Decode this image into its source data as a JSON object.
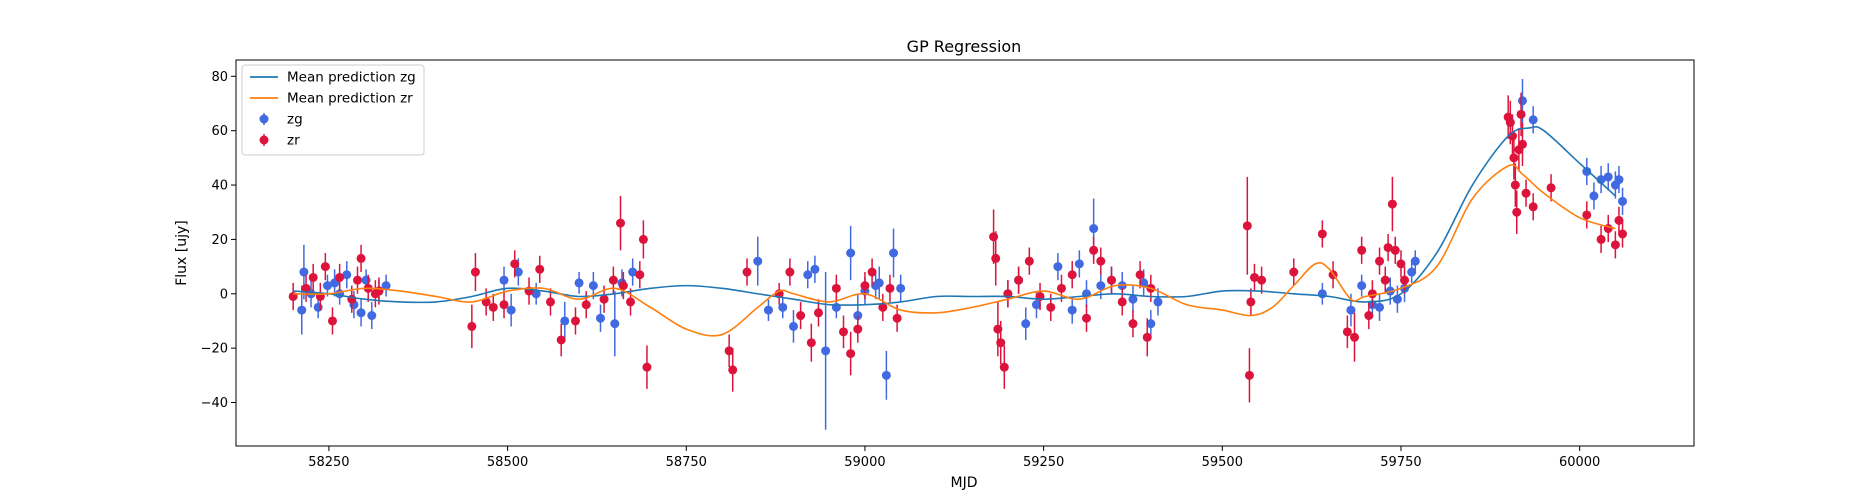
{
  "chart_data": {
    "type": "scatter",
    "title": "GP Regression",
    "xlabel": "MJD",
    "ylabel": "Flux [ujy]",
    "xlim": [
      58120,
      60160
    ],
    "ylim": [
      -56,
      86
    ],
    "xticks": [
      58250,
      58500,
      58750,
      59000,
      59250,
      59500,
      59750,
      60000
    ],
    "yticks": [
      -40,
      -20,
      0,
      20,
      40,
      60,
      80
    ],
    "grid": false,
    "legend_position": "upper-left",
    "colors": {
      "zg_line": "#1f77b4",
      "zr_line": "#ff7f0e",
      "zg_points": "#4169e1",
      "zr_points": "#dc143c"
    },
    "series": [
      {
        "name": "Mean prediction zg",
        "kind": "line",
        "color": "#1f77b4",
        "x": [
          58200,
          58250,
          58300,
          58350,
          58400,
          58450,
          58500,
          58550,
          58600,
          58650,
          58700,
          58750,
          58800,
          58850,
          58900,
          58950,
          59000,
          59050,
          59100,
          59150,
          59200,
          59250,
          59300,
          59350,
          59400,
          59450,
          59500,
          59550,
          59600,
          59650,
          59700,
          59750,
          59800,
          59850,
          59900,
          59930,
          59950,
          60000,
          60050
        ],
        "y": [
          1,
          0,
          -2,
          -3,
          -3,
          -1,
          2,
          1,
          -1,
          0,
          2,
          3,
          2,
          0,
          -2,
          -4,
          -4,
          -3,
          -1,
          -1,
          -1,
          -2,
          -1,
          0,
          -1,
          -1,
          1,
          1,
          0,
          -1,
          -3,
          0,
          15,
          40,
          58,
          61,
          60,
          48,
          36
        ]
      },
      {
        "name": "Mean prediction zr",
        "kind": "line",
        "color": "#ff7f0e",
        "x": [
          58200,
          58250,
          58300,
          58350,
          58400,
          58450,
          58500,
          58550,
          58600,
          58650,
          58700,
          58750,
          58800,
          58850,
          58880,
          58900,
          58950,
          59000,
          59050,
          59100,
          59150,
          59200,
          59250,
          59300,
          59350,
          59400,
          59450,
          59500,
          59540,
          59570,
          59600,
          59630,
          59650,
          59680,
          59700,
          59750,
          59800,
          59850,
          59900,
          59920,
          59950,
          60000,
          60050
        ],
        "y": [
          0,
          0,
          2,
          1,
          -1,
          -3,
          1,
          2,
          -2,
          2,
          -5,
          -13,
          -15,
          -5,
          1,
          0,
          -3,
          0,
          -6,
          -7,
          -5,
          -2,
          1,
          -2,
          3,
          2,
          -4,
          -6,
          -8,
          -5,
          3,
          11,
          9,
          -2,
          -1,
          2,
          10,
          35,
          47,
          44,
          37,
          28,
          24
        ]
      },
      {
        "name": "zg",
        "kind": "errorbar",
        "color": "#4169e1",
        "points": [
          [
            58212,
            -6,
            9
          ],
          [
            58215,
            8,
            10
          ],
          [
            58225,
            0,
            5
          ],
          [
            58235,
            -5,
            4
          ],
          [
            58248,
            3,
            4
          ],
          [
            58258,
            4,
            5
          ],
          [
            58265,
            0,
            4
          ],
          [
            58275,
            7,
            5
          ],
          [
            58285,
            -4,
            5
          ],
          [
            58295,
            -7,
            5
          ],
          [
            58302,
            5,
            4
          ],
          [
            58310,
            -8,
            5
          ],
          [
            58320,
            1,
            4
          ],
          [
            58330,
            3,
            4
          ],
          [
            58495,
            5,
            5
          ],
          [
            58505,
            -6,
            6
          ],
          [
            58515,
            8,
            5
          ],
          [
            58540,
            0,
            4
          ],
          [
            58580,
            -10,
            7
          ],
          [
            58600,
            4,
            4
          ],
          [
            58620,
            3,
            5
          ],
          [
            58630,
            -9,
            5
          ],
          [
            58650,
            -11,
            12
          ],
          [
            58660,
            4,
            5
          ],
          [
            58675,
            8,
            5
          ],
          [
            58850,
            12,
            9
          ],
          [
            58865,
            -6,
            4
          ],
          [
            58885,
            -5,
            4
          ],
          [
            58900,
            -12,
            6
          ],
          [
            58920,
            7,
            5
          ],
          [
            58930,
            9,
            5
          ],
          [
            58945,
            -21,
            29
          ],
          [
            58960,
            -5,
            4
          ],
          [
            58980,
            15,
            10
          ],
          [
            58990,
            -8,
            8
          ],
          [
            59000,
            1,
            5
          ],
          [
            59015,
            3,
            5
          ],
          [
            59020,
            4,
            6
          ],
          [
            59030,
            -30,
            9
          ],
          [
            59040,
            15,
            9
          ],
          [
            59050,
            2,
            5
          ],
          [
            59200,
            0,
            5
          ],
          [
            59215,
            5,
            5
          ],
          [
            59225,
            -11,
            6
          ],
          [
            59240,
            -4,
            5
          ],
          [
            59270,
            10,
            5
          ],
          [
            59290,
            -6,
            5
          ],
          [
            59300,
            11,
            5
          ],
          [
            59310,
            0,
            5
          ],
          [
            59320,
            24,
            11
          ],
          [
            59330,
            3,
            5
          ],
          [
            59345,
            5,
            5
          ],
          [
            59360,
            3,
            5
          ],
          [
            59375,
            -2,
            5
          ],
          [
            59390,
            4,
            5
          ],
          [
            59400,
            -11,
            5
          ],
          [
            59410,
            -3,
            5
          ],
          [
            59640,
            0,
            4
          ],
          [
            59680,
            -6,
            6
          ],
          [
            59695,
            3,
            4
          ],
          [
            59710,
            -4,
            5
          ],
          [
            59720,
            -5,
            5
          ],
          [
            59735,
            1,
            5
          ],
          [
            59745,
            -2,
            5
          ],
          [
            59755,
            2,
            5
          ],
          [
            59765,
            8,
            4
          ],
          [
            59770,
            12,
            4
          ],
          [
            59920,
            71,
            8
          ],
          [
            59935,
            64,
            5
          ],
          [
            60010,
            45,
            5
          ],
          [
            60020,
            36,
            5
          ],
          [
            60030,
            42,
            5
          ],
          [
            60040,
            43,
            5
          ],
          [
            60050,
            40,
            5
          ],
          [
            60055,
            42,
            5
          ],
          [
            60060,
            34,
            5
          ]
        ]
      },
      {
        "name": "zr",
        "kind": "errorbar",
        "color": "#dc143c",
        "points": [
          [
            58200,
            -1,
            5
          ],
          [
            58218,
            2,
            5
          ],
          [
            58228,
            6,
            5
          ],
          [
            58238,
            -1,
            5
          ],
          [
            58245,
            10,
            5
          ],
          [
            58255,
            -10,
            5
          ],
          [
            58265,
            6,
            5
          ],
          [
            58282,
            -2,
            5
          ],
          [
            58290,
            5,
            5
          ],
          [
            58295,
            13,
            5
          ],
          [
            58305,
            2,
            5
          ],
          [
            58315,
            0,
            5
          ],
          [
            58320,
            1,
            5
          ],
          [
            58450,
            -12,
            8
          ],
          [
            58455,
            8,
            7
          ],
          [
            58470,
            -3,
            5
          ],
          [
            58480,
            -5,
            5
          ],
          [
            58495,
            -4,
            5
          ],
          [
            58510,
            11,
            5
          ],
          [
            58530,
            1,
            5
          ],
          [
            58545,
            9,
            5
          ],
          [
            58560,
            -3,
            5
          ],
          [
            58575,
            -17,
            6
          ],
          [
            58595,
            -10,
            5
          ],
          [
            58610,
            -4,
            5
          ],
          [
            58635,
            -2,
            5
          ],
          [
            58648,
            5,
            5
          ],
          [
            58658,
            26,
            10
          ],
          [
            58662,
            3,
            5
          ],
          [
            58672,
            -3,
            5
          ],
          [
            58685,
            7,
            5
          ],
          [
            58690,
            20,
            7
          ],
          [
            58695,
            -27,
            8
          ],
          [
            58810,
            -21,
            6
          ],
          [
            58815,
            -28,
            8
          ],
          [
            58835,
            8,
            5
          ],
          [
            58880,
            0,
            4
          ],
          [
            58895,
            8,
            5
          ],
          [
            58910,
            -8,
            5
          ],
          [
            58925,
            -18,
            7
          ],
          [
            58935,
            -7,
            5
          ],
          [
            58960,
            2,
            5
          ],
          [
            58970,
            -14,
            6
          ],
          [
            58980,
            -22,
            8
          ],
          [
            58990,
            -13,
            5
          ],
          [
            59000,
            3,
            5
          ],
          [
            59010,
            8,
            5
          ],
          [
            59025,
            -5,
            5
          ],
          [
            59035,
            2,
            5
          ],
          [
            59045,
            -9,
            5
          ],
          [
            59180,
            21,
            10
          ],
          [
            59183,
            13,
            10
          ],
          [
            59186,
            -13,
            10
          ],
          [
            59190,
            -18,
            8
          ],
          [
            59195,
            -27,
            8
          ],
          [
            59200,
            0,
            5
          ],
          [
            59215,
            5,
            5
          ],
          [
            59230,
            12,
            5
          ],
          [
            59245,
            -1,
            5
          ],
          [
            59260,
            -5,
            5
          ],
          [
            59275,
            2,
            5
          ],
          [
            59290,
            7,
            5
          ],
          [
            59310,
            -9,
            5
          ],
          [
            59320,
            16,
            5
          ],
          [
            59330,
            12,
            5
          ],
          [
            59345,
            5,
            5
          ],
          [
            59360,
            -3,
            5
          ],
          [
            59375,
            -11,
            5
          ],
          [
            59385,
            7,
            5
          ],
          [
            59395,
            -16,
            7
          ],
          [
            59400,
            2,
            5
          ],
          [
            59535,
            25,
            18
          ],
          [
            59538,
            -30,
            10
          ],
          [
            59540,
            -3,
            5
          ],
          [
            59545,
            6,
            5
          ],
          [
            59555,
            5,
            5
          ],
          [
            59600,
            8,
            5
          ],
          [
            59640,
            22,
            5
          ],
          [
            59655,
            7,
            5
          ],
          [
            59675,
            -14,
            6
          ],
          [
            59685,
            -16,
            9
          ],
          [
            59695,
            16,
            5
          ],
          [
            59705,
            -8,
            5
          ],
          [
            59710,
            0,
            5
          ],
          [
            59720,
            12,
            5
          ],
          [
            59728,
            5,
            5
          ],
          [
            59732,
            17,
            5
          ],
          [
            59738,
            33,
            10
          ],
          [
            59742,
            16,
            5
          ],
          [
            59750,
            11,
            5
          ],
          [
            59755,
            5,
            5
          ],
          [
            59900,
            65,
            8
          ],
          [
            59903,
            63,
            8
          ],
          [
            59906,
            58,
            8
          ],
          [
            59908,
            50,
            8
          ],
          [
            59910,
            40,
            8
          ],
          [
            59912,
            30,
            8
          ],
          [
            59915,
            53,
            8
          ],
          [
            59918,
            66,
            8
          ],
          [
            59920,
            55,
            8
          ],
          [
            59925,
            37,
            5
          ],
          [
            59935,
            32,
            5
          ],
          [
            59960,
            39,
            5
          ],
          [
            60010,
            29,
            5
          ],
          [
            60030,
            20,
            5
          ],
          [
            60040,
            24,
            5
          ],
          [
            60050,
            18,
            5
          ],
          [
            60055,
            27,
            5
          ],
          [
            60060,
            22,
            5
          ]
        ]
      }
    ],
    "legend": [
      {
        "label": "Mean prediction zg",
        "kind": "line",
        "color": "#1f77b4"
      },
      {
        "label": "Mean prediction zr",
        "kind": "line",
        "color": "#ff7f0e"
      },
      {
        "label": "zg",
        "kind": "marker",
        "color": "#4169e1"
      },
      {
        "label": "zr",
        "kind": "marker",
        "color": "#dc143c"
      }
    ]
  }
}
